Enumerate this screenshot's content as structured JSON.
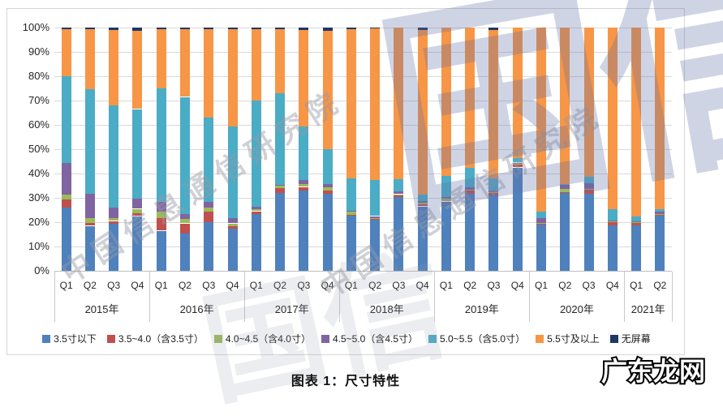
{
  "caption": "图表 1：尺寸特性",
  "watermarks": {
    "diagonal_text": "中国信息通信研究院",
    "big_logo_text": "国信",
    "stamp_text": "广东龙网"
  },
  "chart_data": {
    "type": "bar",
    "subtype": "100%-stacked-column",
    "title": "图表 1：尺寸特性",
    "xlabel": "",
    "ylabel": "",
    "ylim": [
      0,
      100
    ],
    "unit": "%",
    "grid": true,
    "legend_position": "bottom",
    "y_ticks": [
      "0%",
      "10%",
      "20%",
      "30%",
      "40%",
      "50%",
      "60%",
      "70%",
      "80%",
      "90%",
      "100%"
    ],
    "years": [
      {
        "label": "2015年",
        "quarters": [
          "Q1",
          "Q2",
          "Q3",
          "Q4"
        ]
      },
      {
        "label": "2016年",
        "quarters": [
          "Q1",
          "Q2",
          "Q3",
          "Q4"
        ]
      },
      {
        "label": "2017年",
        "quarters": [
          "Q1",
          "Q2",
          "Q3",
          "Q4"
        ]
      },
      {
        "label": "2018年",
        "quarters": [
          "Q1",
          "Q2",
          "Q3",
          "Q4"
        ]
      },
      {
        "label": "2019年",
        "quarters": [
          "Q1",
          "Q2",
          "Q3",
          "Q4"
        ]
      },
      {
        "label": "2020年",
        "quarters": [
          "Q1",
          "Q2",
          "Q3",
          "Q4"
        ]
      },
      {
        "label": "2021年",
        "quarters": [
          "Q1",
          "Q2"
        ]
      }
    ],
    "series": [
      {
        "name": "3.5寸以下",
        "color": "#4F81BD",
        "values": [
          26,
          18.5,
          19.5,
          22.5,
          16.5,
          15.5,
          20,
          17.5,
          23.5,
          32,
          33,
          31.8,
          22.7,
          21,
          30.3,
          26.5,
          28,
          31.8,
          31,
          42.5,
          19,
          32,
          31.7,
          18.7,
          18.7,
          22.7
        ]
      },
      {
        "name": "3.5~4.0（含3.5寸）",
        "color": "#C0504D",
        "values": [
          3.5,
          1.2,
          1,
          1.3,
          5.3,
          4,
          4.5,
          1,
          1,
          2,
          1.5,
          1.1,
          0.4,
          0.3,
          0.9,
          0.8,
          0.5,
          1.1,
          1,
          1.1,
          0.3,
          0.3,
          1.6,
          1.3,
          1,
          0.3
        ]
      },
      {
        "name": "4.0~4.5（含4.0寸）",
        "color": "#9BBB59",
        "values": [
          2,
          2,
          1.3,
          1.7,
          2.6,
          1.8,
          1.5,
          1,
          0.8,
          1,
          1.2,
          1.3,
          1.2,
          0.3,
          0.3,
          0.7,
          1.2,
          0.3,
          0.3,
          0.3,
          0.3,
          1.4,
          0.3,
          0.2,
          0.2,
          0.3
        ]
      },
      {
        "name": "4.5~5.0（含4.5寸）",
        "color": "#8064A2",
        "values": [
          13,
          10,
          4.2,
          4.3,
          4,
          2,
          2.5,
          2.3,
          1.2,
          0.5,
          1.5,
          1.5,
          0.4,
          0.9,
          1.1,
          0.8,
          0.5,
          1.3,
          0.7,
          0.6,
          2.1,
          1.6,
          2.4,
          0.5,
          0.4,
          1
        ]
      },
      {
        "name": "5.0~5.5（含5.0寸）",
        "color": "#4BACC6",
        "values": [
          35.5,
          43,
          42,
          36.7,
          46.6,
          48.2,
          34.5,
          37.5,
          43.5,
          37.5,
          22.3,
          14.3,
          13.2,
          14.9,
          5.1,
          2.5,
          8.8,
          8,
          5,
          1.9,
          2.6,
          0.5,
          2.7,
          4.6,
          2.2,
          1.2
        ]
      },
      {
        "name": "5.5寸及以上",
        "color": "#F79646",
        "values": [
          19.2,
          24.5,
          31,
          32.2,
          24.2,
          27.8,
          36.3,
          40,
          29.3,
          26.5,
          39.5,
          48.7,
          61.6,
          62.4,
          62.3,
          67.7,
          61,
          57.5,
          61,
          53.6,
          75.7,
          64.2,
          61.3,
          74.7,
          77.5,
          74.5
        ]
      },
      {
        "name": "无屏幕",
        "color": "#1F3864",
        "values": [
          0.8,
          0.8,
          1,
          1.3,
          0.8,
          0.7,
          0.7,
          0.7,
          0.7,
          0.5,
          1,
          1.3,
          0.5,
          0.2,
          0,
          1,
          0,
          0,
          1,
          0,
          0,
          0,
          0,
          0,
          0,
          0
        ]
      }
    ]
  }
}
